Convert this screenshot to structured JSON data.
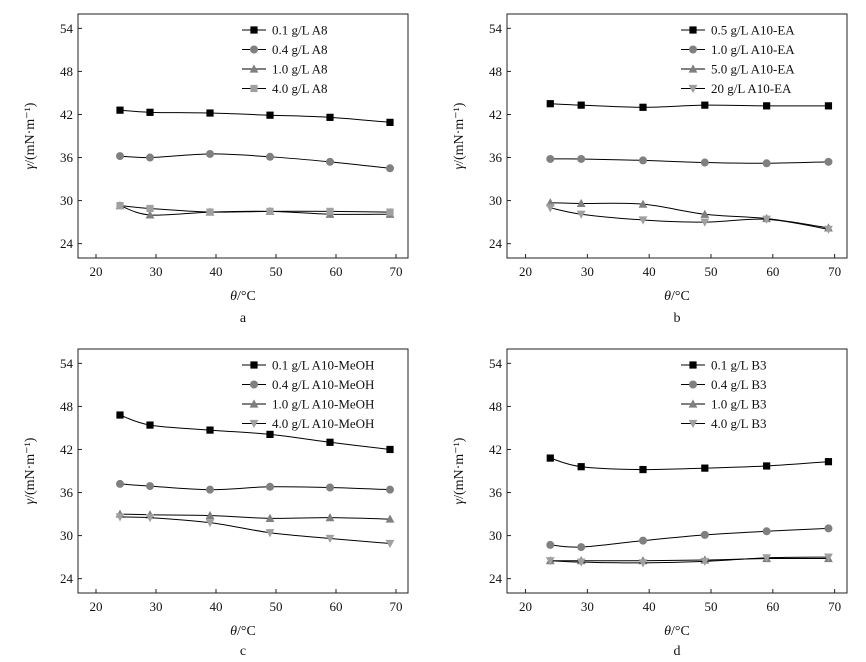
{
  "chart_data": [
    {
      "type": "line",
      "panel_label": "a",
      "x_unit_symbol": "θ",
      "x_unit_text": "/°C",
      "y_unit_symbol": "γ",
      "y_unit_text": "/(mN·m⁻¹)",
      "xlim": [
        17,
        72
      ],
      "ylim": [
        22,
        56
      ],
      "xticks": [
        20,
        30,
        40,
        50,
        60,
        70
      ],
      "yticks": [
        24,
        30,
        36,
        42,
        48,
        54
      ],
      "legend_position": "top-right",
      "x": [
        24,
        29,
        39,
        49,
        59,
        69
      ],
      "series": [
        {
          "name": "0.1 g/L A8",
          "marker": "square",
          "color": "#000000",
          "values": [
            42.6,
            42.3,
            42.2,
            41.9,
            41.6,
            40.9
          ]
        },
        {
          "name": "0.4 g/L A8",
          "marker": "circle",
          "color": "#808080",
          "values": [
            36.2,
            36.0,
            36.5,
            36.1,
            35.4,
            34.5
          ]
        },
        {
          "name": "1.0 g/L A8",
          "marker": "triangle-up",
          "color": "#808080",
          "values": [
            29.3,
            28.0,
            28.4,
            28.5,
            28.1,
            28.1
          ]
        },
        {
          "name": "4.0 g/L A8",
          "marker": "square",
          "color": "#a0a0a0",
          "values": [
            29.3,
            28.9,
            28.4,
            28.5,
            28.5,
            28.4
          ]
        }
      ]
    },
    {
      "type": "line",
      "panel_label": "b",
      "x_unit_symbol": "θ",
      "x_unit_text": "/°C",
      "y_unit_symbol": "γ",
      "y_unit_text": "/(mN·m⁻¹)",
      "xlim": [
        17,
        72
      ],
      "ylim": [
        22,
        56
      ],
      "xticks": [
        20,
        30,
        40,
        50,
        60,
        70
      ],
      "yticks": [
        24,
        30,
        36,
        42,
        48,
        54
      ],
      "legend_position": "top-right",
      "x": [
        24,
        29,
        39,
        49,
        59,
        69
      ],
      "series": [
        {
          "name": "0.5 g/L A10-EA",
          "marker": "square",
          "color": "#000000",
          "values": [
            43.5,
            43.3,
            43.0,
            43.3,
            43.2,
            43.2
          ]
        },
        {
          "name": "1.0 g/L A10-EA",
          "marker": "circle",
          "color": "#808080",
          "values": [
            35.8,
            35.8,
            35.6,
            35.3,
            35.2,
            35.4
          ]
        },
        {
          "name": "5.0 g/L A10-EA",
          "marker": "triangle-up",
          "color": "#808080",
          "values": [
            29.7,
            29.6,
            29.5,
            28.1,
            27.5,
            26.2
          ]
        },
        {
          "name": "20 g/L A10-EA",
          "marker": "triangle-down",
          "color": "#a0a0a0",
          "values": [
            29.0,
            28.1,
            27.3,
            27.0,
            27.4,
            26.0
          ]
        }
      ]
    },
    {
      "type": "line",
      "panel_label": "c",
      "x_unit_symbol": "θ",
      "x_unit_text": "/°C",
      "y_unit_symbol": "γ",
      "y_unit_text": "/(mN·m⁻¹)",
      "xlim": [
        17,
        72
      ],
      "ylim": [
        22,
        56
      ],
      "xticks": [
        20,
        30,
        40,
        50,
        60,
        70
      ],
      "yticks": [
        24,
        30,
        36,
        42,
        48,
        54
      ],
      "legend_position": "top-right",
      "x": [
        24,
        29,
        39,
        49,
        59,
        69
      ],
      "series": [
        {
          "name": "0.1 g/L A10-MeOH",
          "marker": "square",
          "color": "#000000",
          "values": [
            46.8,
            45.4,
            44.7,
            44.1,
            43.0,
            42.0
          ]
        },
        {
          "name": "0.4 g/L A10-MeOH",
          "marker": "circle",
          "color": "#808080",
          "values": [
            37.2,
            36.9,
            36.4,
            36.8,
            36.7,
            36.4
          ]
        },
        {
          "name": "1.0 g/L A10-MeOH",
          "marker": "triangle-up",
          "color": "#808080",
          "values": [
            33.0,
            32.9,
            32.8,
            32.4,
            32.5,
            32.3
          ]
        },
        {
          "name": "4.0 g/L A10-MeOH",
          "marker": "triangle-down",
          "color": "#a0a0a0",
          "values": [
            32.6,
            32.5,
            31.8,
            30.4,
            29.6,
            28.9
          ]
        }
      ]
    },
    {
      "type": "line",
      "panel_label": "d",
      "x_unit_symbol": "θ",
      "x_unit_text": "/°C",
      "y_unit_symbol": "γ",
      "y_unit_text": "/(mN·m⁻¹)",
      "xlim": [
        17,
        72
      ],
      "ylim": [
        22,
        56
      ],
      "xticks": [
        20,
        30,
        40,
        50,
        60,
        70
      ],
      "yticks": [
        24,
        30,
        36,
        42,
        48,
        54
      ],
      "legend_position": "top-right",
      "x": [
        24,
        29,
        39,
        49,
        59,
        69
      ],
      "series": [
        {
          "name": "0.1 g/L B3",
          "marker": "square",
          "color": "#000000",
          "values": [
            40.8,
            39.6,
            39.2,
            39.4,
            39.7,
            40.3
          ]
        },
        {
          "name": "0.4 g/L B3",
          "marker": "circle",
          "color": "#808080",
          "values": [
            28.7,
            28.4,
            29.3,
            30.1,
            30.6,
            31.0
          ]
        },
        {
          "name": "1.0 g/L B3",
          "marker": "triangle-up",
          "color": "#808080",
          "values": [
            26.5,
            26.5,
            26.5,
            26.6,
            26.8,
            26.8
          ]
        },
        {
          "name": "4.0 g/L B3",
          "marker": "triangle-down",
          "color": "#a0a0a0",
          "values": [
            26.5,
            26.3,
            26.2,
            26.4,
            26.9,
            27.0
          ]
        }
      ]
    }
  ]
}
